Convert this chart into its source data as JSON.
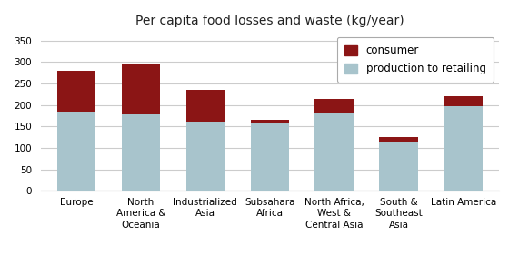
{
  "title": "Per capita food losses and waste (kg/year)",
  "categories": [
    "Europe",
    "North\nAmerica &\nOceania",
    "Industrialized\nAsia",
    "Subsahara\nAfrica",
    "North Africa,\nWest &\nCentral Asia",
    "South &\nSoutheast\nAsia",
    "Latin America"
  ],
  "production_to_retailing": [
    185,
    178,
    162,
    158,
    180,
    112,
    197
  ],
  "consumer": [
    95,
    117,
    73,
    8,
    33,
    13,
    23
  ],
  "production_color": "#a8c4cc",
  "consumer_color": "#8b1515",
  "ylim": [
    0,
    370
  ],
  "yticks": [
    0,
    50,
    100,
    150,
    200,
    250,
    300,
    350
  ],
  "legend_labels": [
    "consumer",
    "production to retailing"
  ],
  "bg_color": "#ffffff",
  "grid_color": "#cccccc",
  "title_fontsize": 10,
  "tick_fontsize": 7.5,
  "legend_fontsize": 8.5
}
